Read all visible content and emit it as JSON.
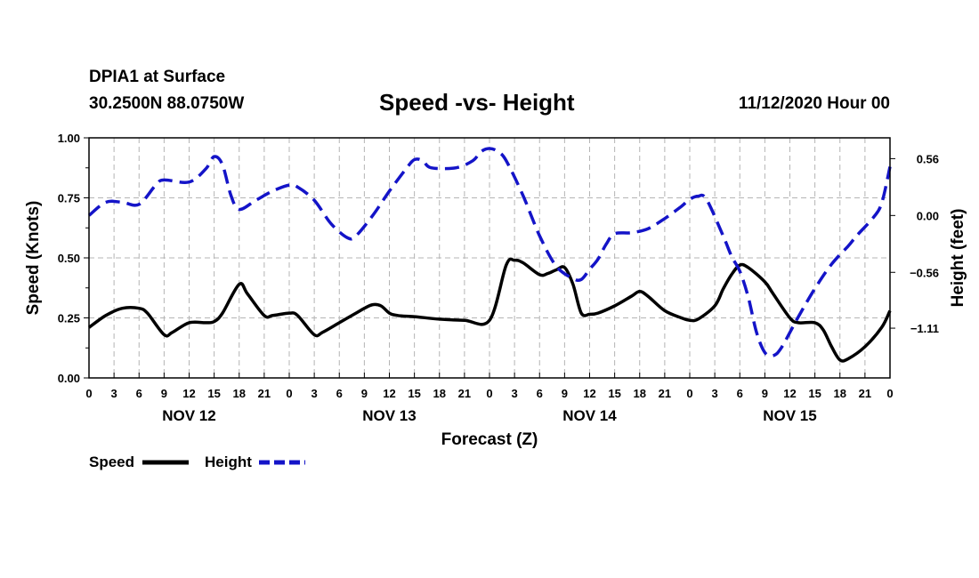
{
  "header": {
    "station": "DPIA1 at Surface",
    "coords": "30.2500N 88.0750W",
    "title": "Speed -vs- Height",
    "datetime": "11/12/2020 Hour 00"
  },
  "colors": {
    "speed": "#000000",
    "height": "#1414c8",
    "grid": "#b4b4b4"
  },
  "chart_data": {
    "type": "line",
    "title": "Speed -vs- Height",
    "xlabel": "Forecast (Z)",
    "ylabel": "Speed (Knots)",
    "y2label": "Height (feet)",
    "x_range_hours": [
      0,
      96
    ],
    "ylim": [
      0,
      1
    ],
    "y2lim": [
      -1.6,
      0.765
    ],
    "grid": true,
    "x_ticks": [
      {
        "h": 0,
        "label": "0"
      },
      {
        "h": 3,
        "label": "3"
      },
      {
        "h": 6,
        "label": "6"
      },
      {
        "h": 9,
        "label": "9"
      },
      {
        "h": 12,
        "label": "12"
      },
      {
        "h": 15,
        "label": "15"
      },
      {
        "h": 18,
        "label": "18"
      },
      {
        "h": 21,
        "label": "21"
      },
      {
        "h": 24,
        "label": "0"
      },
      {
        "h": 27,
        "label": "3"
      },
      {
        "h": 30,
        "label": "6"
      },
      {
        "h": 33,
        "label": "9"
      },
      {
        "h": 36,
        "label": "12"
      },
      {
        "h": 39,
        "label": "15"
      },
      {
        "h": 42,
        "label": "18"
      },
      {
        "h": 45,
        "label": "21"
      },
      {
        "h": 48,
        "label": "0"
      },
      {
        "h": 51,
        "label": "3"
      },
      {
        "h": 54,
        "label": "6"
      },
      {
        "h": 57,
        "label": "9"
      },
      {
        "h": 60,
        "label": "12"
      },
      {
        "h": 63,
        "label": "15"
      },
      {
        "h": 66,
        "label": "18"
      },
      {
        "h": 69,
        "label": "21"
      },
      {
        "h": 72,
        "label": "0"
      },
      {
        "h": 75,
        "label": "3"
      },
      {
        "h": 78,
        "label": "6"
      },
      {
        "h": 81,
        "label": "9"
      },
      {
        "h": 84,
        "label": "12"
      },
      {
        "h": 87,
        "label": "15"
      },
      {
        "h": 90,
        "label": "18"
      },
      {
        "h": 93,
        "label": "21"
      },
      {
        "h": 96,
        "label": "0"
      }
    ],
    "day_labels": [
      {
        "h": 12,
        "label": "NOV 12"
      },
      {
        "h": 36,
        "label": "NOV 13"
      },
      {
        "h": 60,
        "label": "NOV 14"
      },
      {
        "h": 84,
        "label": "NOV 15"
      }
    ],
    "y_ticks": [
      {
        "v": 1.0,
        "label": "1.00"
      },
      {
        "v": 0.75,
        "label": "0.75"
      },
      {
        "v": 0.5,
        "label": "0.50"
      },
      {
        "v": 0.25,
        "label": "0.25"
      },
      {
        "v": 0.0,
        "label": "0.00"
      }
    ],
    "y2_ticks": [
      {
        "v": 0.56,
        "label": "0.56"
      },
      {
        "v": 0.0,
        "label": "0.00"
      },
      {
        "v": -0.56,
        "label": "−0.56"
      },
      {
        "v": -1.11,
        "label": "−1.11"
      }
    ],
    "series": [
      {
        "name": "Speed",
        "axis": "left",
        "points": [
          [
            0,
            0.21
          ],
          [
            2,
            0.26
          ],
          [
            4,
            0.29
          ],
          [
            6,
            0.29
          ],
          [
            7,
            0.27
          ],
          [
            9,
            0.18
          ],
          [
            10,
            0.19
          ],
          [
            12,
            0.23
          ],
          [
            14,
            0.23
          ],
          [
            15,
            0.235
          ],
          [
            16,
            0.27
          ],
          [
            18,
            0.39
          ],
          [
            19,
            0.35
          ],
          [
            21,
            0.26
          ],
          [
            22,
            0.26
          ],
          [
            24,
            0.27
          ],
          [
            25,
            0.26
          ],
          [
            27,
            0.18
          ],
          [
            28,
            0.19
          ],
          [
            30,
            0.23
          ],
          [
            32,
            0.27
          ],
          [
            33,
            0.29
          ],
          [
            34,
            0.305
          ],
          [
            35,
            0.3
          ],
          [
            36,
            0.27
          ],
          [
            37,
            0.26
          ],
          [
            39,
            0.255
          ],
          [
            42,
            0.245
          ],
          [
            45,
            0.24
          ],
          [
            48,
            0.24
          ],
          [
            50,
            0.47
          ],
          [
            51,
            0.49
          ],
          [
            52,
            0.48
          ],
          [
            54,
            0.43
          ],
          [
            55,
            0.435
          ],
          [
            56,
            0.45
          ],
          [
            57,
            0.46
          ],
          [
            58,
            0.39
          ],
          [
            59,
            0.27
          ],
          [
            60,
            0.265
          ],
          [
            61,
            0.27
          ],
          [
            63,
            0.3
          ],
          [
            65,
            0.34
          ],
          [
            66,
            0.36
          ],
          [
            67,
            0.34
          ],
          [
            69,
            0.28
          ],
          [
            71,
            0.25
          ],
          [
            72,
            0.24
          ],
          [
            73,
            0.245
          ],
          [
            75,
            0.3
          ],
          [
            76,
            0.37
          ],
          [
            77,
            0.43
          ],
          [
            78,
            0.47
          ],
          [
            79,
            0.46
          ],
          [
            81,
            0.4
          ],
          [
            82,
            0.35
          ],
          [
            84,
            0.25
          ],
          [
            85,
            0.23
          ],
          [
            87,
            0.23
          ],
          [
            88,
            0.2
          ],
          [
            89,
            0.13
          ],
          [
            90,
            0.075
          ],
          [
            91,
            0.08
          ],
          [
            93,
            0.13
          ],
          [
            95,
            0.21
          ],
          [
            96,
            0.28
          ]
        ]
      },
      {
        "name": "Height",
        "axis": "right",
        "points": [
          [
            0,
            0.0
          ],
          [
            2,
            0.13
          ],
          [
            4,
            0.13
          ],
          [
            6,
            0.11
          ],
          [
            8,
            0.3
          ],
          [
            9,
            0.35
          ],
          [
            12,
            0.33
          ],
          [
            14,
            0.46
          ],
          [
            15,
            0.58
          ],
          [
            16,
            0.5
          ],
          [
            17,
            0.2
          ],
          [
            18,
            0.06
          ],
          [
            20,
            0.15
          ],
          [
            22,
            0.24
          ],
          [
            24,
            0.3
          ],
          [
            25,
            0.28
          ],
          [
            27,
            0.15
          ],
          [
            29,
            -0.08
          ],
          [
            31,
            -0.22
          ],
          [
            32,
            -0.2
          ],
          [
            34,
            0.0
          ],
          [
            36,
            0.24
          ],
          [
            38,
            0.46
          ],
          [
            39,
            0.55
          ],
          [
            40,
            0.54
          ],
          [
            41,
            0.47
          ],
          [
            44,
            0.47
          ],
          [
            46,
            0.54
          ],
          [
            47,
            0.63
          ],
          [
            48,
            0.66
          ],
          [
            49,
            0.63
          ],
          [
            50,
            0.54
          ],
          [
            52,
            0.2
          ],
          [
            54,
            -0.2
          ],
          [
            56,
            -0.5
          ],
          [
            58,
            -0.62
          ],
          [
            59,
            -0.63
          ],
          [
            60,
            -0.53
          ],
          [
            61,
            -0.43
          ],
          [
            62,
            -0.28
          ],
          [
            63,
            -0.18
          ],
          [
            65,
            -0.17
          ],
          [
            67,
            -0.13
          ],
          [
            69,
            -0.03
          ],
          [
            71,
            0.09
          ],
          [
            72,
            0.16
          ],
          [
            73,
            0.19
          ],
          [
            74,
            0.16
          ],
          [
            76,
            -0.2
          ],
          [
            77,
            -0.4
          ],
          [
            78,
            -0.55
          ],
          [
            79,
            -0.8
          ],
          [
            80,
            -1.15
          ],
          [
            81,
            -1.35
          ],
          [
            82,
            -1.38
          ],
          [
            83,
            -1.3
          ],
          [
            85,
            -1.0
          ],
          [
            87,
            -0.72
          ],
          [
            89,
            -0.48
          ],
          [
            91,
            -0.3
          ],
          [
            92,
            -0.2
          ],
          [
            94,
            -0.02
          ],
          [
            95,
            0.12
          ],
          [
            96,
            0.48
          ]
        ]
      }
    ]
  },
  "legend": {
    "speed_label": "Speed",
    "height_label": "Height"
  }
}
